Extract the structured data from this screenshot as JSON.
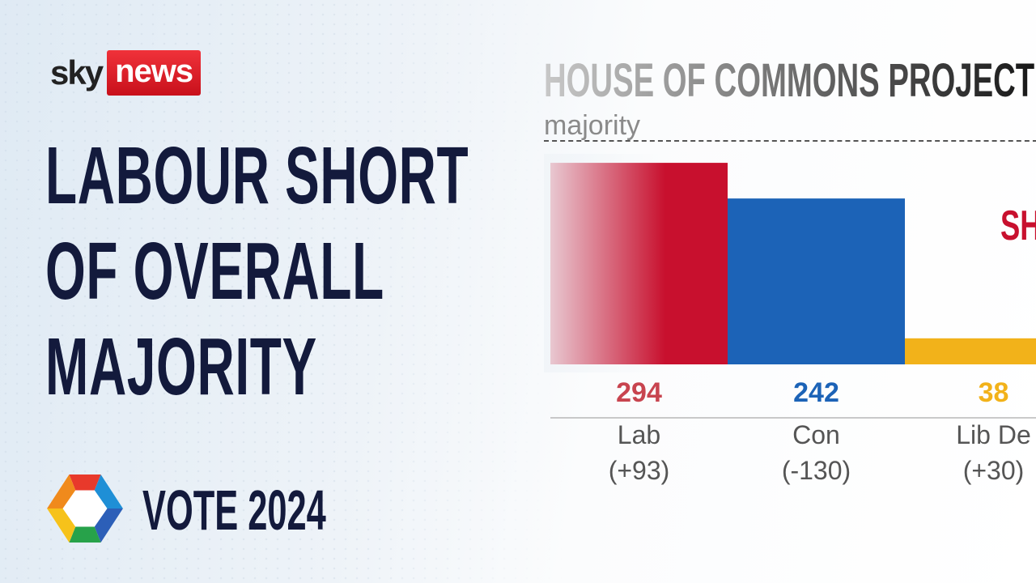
{
  "brand": {
    "sky": "sky",
    "news": "news"
  },
  "headline": {
    "lines": [
      "LABOUR SHORT",
      "OF OVERALL",
      "MAJORITY"
    ]
  },
  "vote": {
    "label": "VOTE 2024"
  },
  "chart_data": {
    "type": "bar",
    "title": "HOUSE OF COMMONS PROJECTI",
    "reference_line": {
      "label": "majority",
      "value": 326
    },
    "categories": [
      "Lab",
      "Con",
      "Lib De"
    ],
    "values": [
      294,
      242,
      38
    ],
    "changes": [
      "(+93)",
      "(-130)",
      "(+30)"
    ],
    "colors": [
      "#c8102e",
      "#1c63b7",
      "#f2b21a"
    ],
    "ylim": [
      0,
      326
    ],
    "annotation": {
      "text": "SH",
      "color": "#c8102e"
    }
  }
}
